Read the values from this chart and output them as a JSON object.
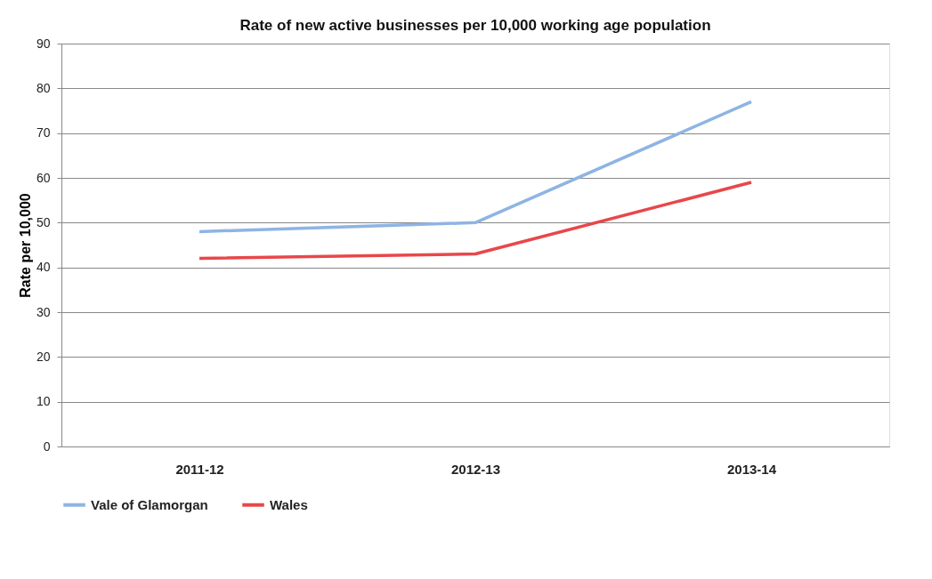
{
  "chart_data": {
    "type": "line",
    "title": "Rate of new active businesses per 10,000 working age population",
    "ylabel": "Rate per 10,000",
    "categories": [
      "2011-12",
      "2012-13",
      "2013-14"
    ],
    "series": [
      {
        "name": "Vale of Glamorgan",
        "color": "#8eb4e3",
        "values": [
          48,
          50,
          77
        ]
      },
      {
        "name": "Wales",
        "color": "#e8474a",
        "values": [
          42,
          43,
          59
        ]
      }
    ],
    "ylim": [
      0,
      90
    ],
    "yticks": [
      0,
      10,
      20,
      30,
      40,
      50,
      60,
      70,
      80,
      90
    ],
    "grid": "y",
    "legend": "bottom",
    "marker": "none",
    "line_style": "solid"
  }
}
